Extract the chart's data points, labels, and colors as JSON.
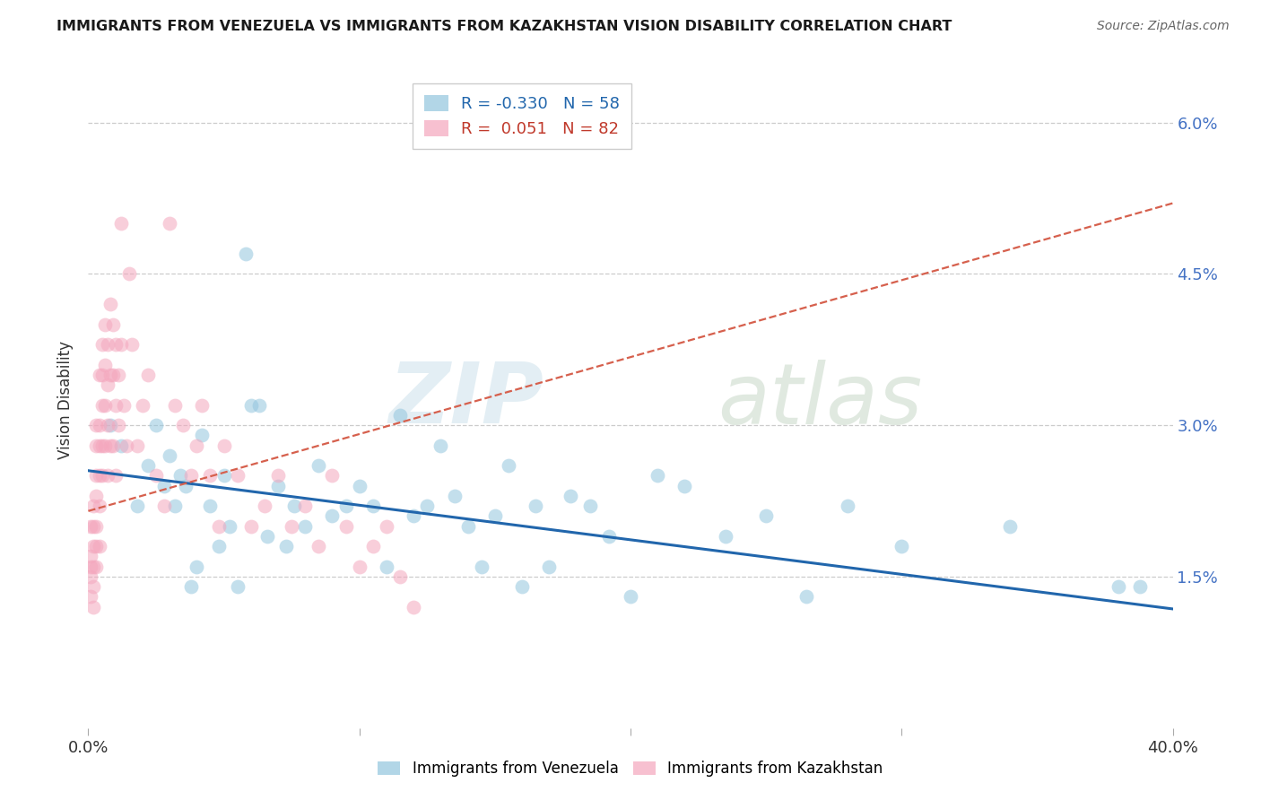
{
  "title": "IMMIGRANTS FROM VENEZUELA VS IMMIGRANTS FROM KAZAKHSTAN VISION DISABILITY CORRELATION CHART",
  "source": "Source: ZipAtlas.com",
  "ylabel": "Vision Disability",
  "xlim": [
    0.0,
    0.4
  ],
  "ylim": [
    0.0,
    0.065
  ],
  "yticks": [
    0.0,
    0.015,
    0.03,
    0.045,
    0.06
  ],
  "ytick_labels": [
    "",
    "1.5%",
    "3.0%",
    "4.5%",
    "6.0%"
  ],
  "xticks": [
    0.0,
    0.1,
    0.2,
    0.3,
    0.4
  ],
  "xtick_labels": [
    "0.0%",
    "",
    "",
    "",
    "40.0%"
  ],
  "legend_r_blue": "R = -0.330",
  "legend_n_blue": "N = 58",
  "legend_r_pink": "R =  0.051",
  "legend_n_pink": "N = 82",
  "color_blue": "#92c5de",
  "color_pink": "#f4a6bd",
  "trendline_blue_color": "#2166ac",
  "trendline_pink_color": "#d6604d",
  "trendline_blue_start_y": 0.0255,
  "trendline_blue_end_y": 0.0118,
  "trendline_pink_start_y": 0.0215,
  "trendline_pink_end_y": 0.052,
  "watermark_zip": "ZIP",
  "watermark_atlas": "atlas",
  "blue_scatter_x": [
    0.008,
    0.012,
    0.018,
    0.022,
    0.025,
    0.028,
    0.03,
    0.032,
    0.034,
    0.036,
    0.038,
    0.04,
    0.042,
    0.045,
    0.048,
    0.05,
    0.052,
    0.055,
    0.058,
    0.06,
    0.063,
    0.066,
    0.07,
    0.073,
    0.076,
    0.08,
    0.085,
    0.09,
    0.095,
    0.1,
    0.105,
    0.11,
    0.115,
    0.12,
    0.125,
    0.13,
    0.135,
    0.14,
    0.145,
    0.15,
    0.155,
    0.16,
    0.165,
    0.17,
    0.178,
    0.185,
    0.192,
    0.2,
    0.21,
    0.22,
    0.235,
    0.25,
    0.265,
    0.28,
    0.3,
    0.34,
    0.38,
    0.388
  ],
  "blue_scatter_y": [
    0.03,
    0.028,
    0.022,
    0.026,
    0.03,
    0.024,
    0.027,
    0.022,
    0.025,
    0.024,
    0.014,
    0.016,
    0.029,
    0.022,
    0.018,
    0.025,
    0.02,
    0.014,
    0.047,
    0.032,
    0.032,
    0.019,
    0.024,
    0.018,
    0.022,
    0.02,
    0.026,
    0.021,
    0.022,
    0.024,
    0.022,
    0.016,
    0.031,
    0.021,
    0.022,
    0.028,
    0.023,
    0.02,
    0.016,
    0.021,
    0.026,
    0.014,
    0.022,
    0.016,
    0.023,
    0.022,
    0.019,
    0.013,
    0.025,
    0.024,
    0.019,
    0.021,
    0.013,
    0.022,
    0.018,
    0.02,
    0.014,
    0.014
  ],
  "pink_scatter_x": [
    0.001,
    0.001,
    0.001,
    0.001,
    0.001,
    0.002,
    0.002,
    0.002,
    0.002,
    0.002,
    0.002,
    0.003,
    0.003,
    0.003,
    0.003,
    0.003,
    0.003,
    0.003,
    0.004,
    0.004,
    0.004,
    0.004,
    0.004,
    0.004,
    0.005,
    0.005,
    0.005,
    0.005,
    0.005,
    0.006,
    0.006,
    0.006,
    0.006,
    0.007,
    0.007,
    0.007,
    0.007,
    0.008,
    0.008,
    0.008,
    0.009,
    0.009,
    0.009,
    0.01,
    0.01,
    0.01,
    0.011,
    0.011,
    0.012,
    0.012,
    0.013,
    0.014,
    0.015,
    0.016,
    0.018,
    0.02,
    0.022,
    0.025,
    0.028,
    0.03,
    0.032,
    0.035,
    0.038,
    0.04,
    0.042,
    0.045,
    0.048,
    0.05,
    0.055,
    0.06,
    0.065,
    0.07,
    0.075,
    0.08,
    0.085,
    0.09,
    0.095,
    0.1,
    0.105,
    0.11,
    0.115,
    0.12
  ],
  "pink_scatter_y": [
    0.02,
    0.017,
    0.016,
    0.015,
    0.013,
    0.022,
    0.02,
    0.018,
    0.016,
    0.014,
    0.012,
    0.03,
    0.028,
    0.025,
    0.023,
    0.02,
    0.018,
    0.016,
    0.035,
    0.03,
    0.028,
    0.025,
    0.022,
    0.018,
    0.038,
    0.035,
    0.032,
    0.028,
    0.025,
    0.04,
    0.036,
    0.032,
    0.028,
    0.038,
    0.034,
    0.03,
    0.025,
    0.042,
    0.035,
    0.028,
    0.04,
    0.035,
    0.028,
    0.038,
    0.032,
    0.025,
    0.035,
    0.03,
    0.038,
    0.05,
    0.032,
    0.028,
    0.045,
    0.038,
    0.028,
    0.032,
    0.035,
    0.025,
    0.022,
    0.05,
    0.032,
    0.03,
    0.025,
    0.028,
    0.032,
    0.025,
    0.02,
    0.028,
    0.025,
    0.02,
    0.022,
    0.025,
    0.02,
    0.022,
    0.018,
    0.025,
    0.02,
    0.016,
    0.018,
    0.02,
    0.015,
    0.012
  ]
}
